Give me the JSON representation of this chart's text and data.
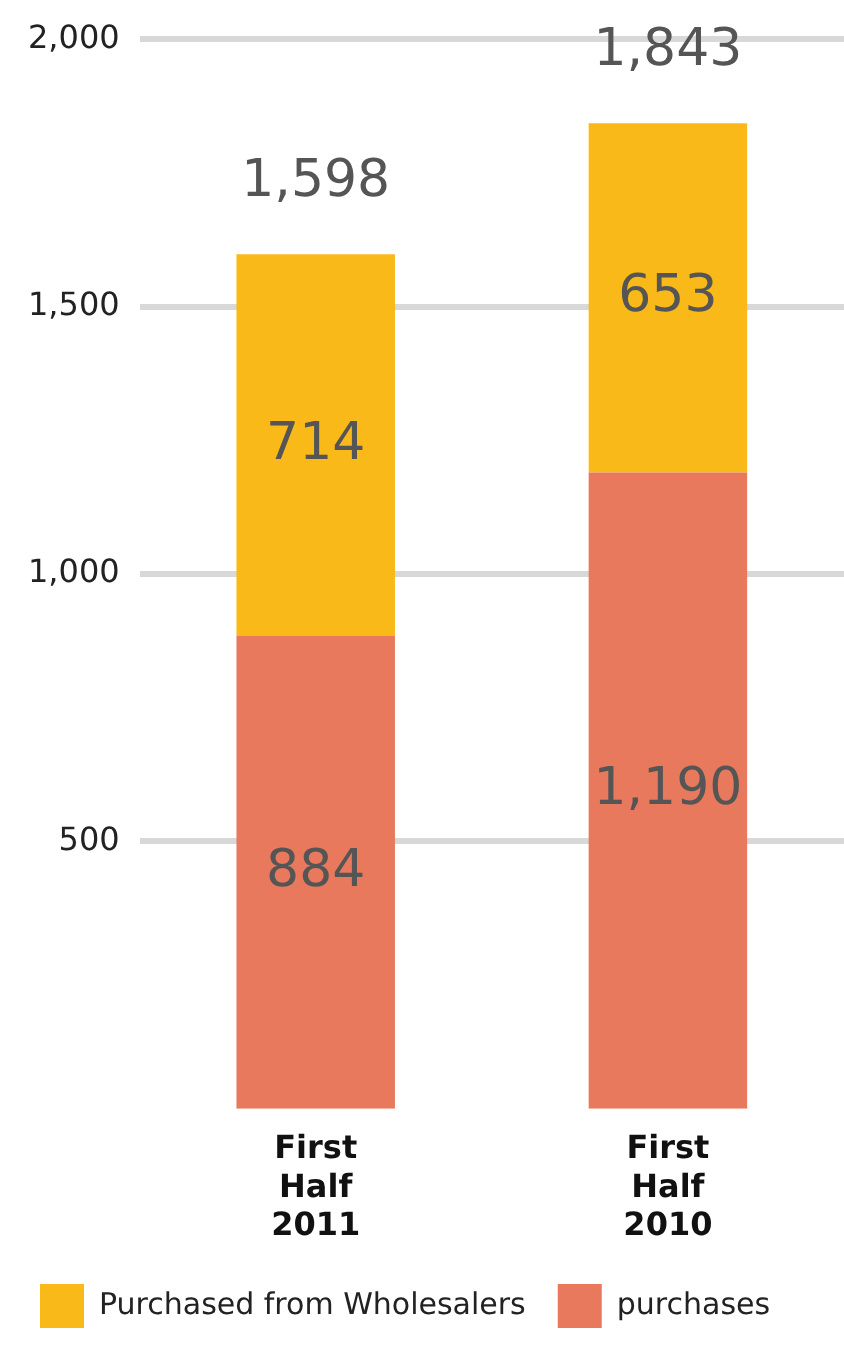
{
  "chart_data": {
    "type": "bar",
    "stacked": true,
    "categories": [
      "First Half 2011",
      "First Half 2010"
    ],
    "series": [
      {
        "name": "purchases",
        "color": "#e8795c",
        "values": [
          884,
          1190
        ],
        "value_labels": [
          "884",
          "1,190"
        ]
      },
      {
        "name": "Purchased from Wholesalers",
        "color": "#f9b918",
        "values": [
          714,
          653
        ],
        "value_labels": [
          "714",
          "653"
        ]
      }
    ],
    "totals": [
      "1,598",
      "1,843"
    ],
    "ylim": [
      0,
      2000
    ],
    "yticks": [
      500,
      {
        "value": 1000,
        "label": "1,000"
      },
      {
        "value": 1500,
        "label": "1,500"
      },
      {
        "value": 2000,
        "label": "2,000"
      }
    ],
    "grid": "y",
    "legend": "bottom"
  }
}
